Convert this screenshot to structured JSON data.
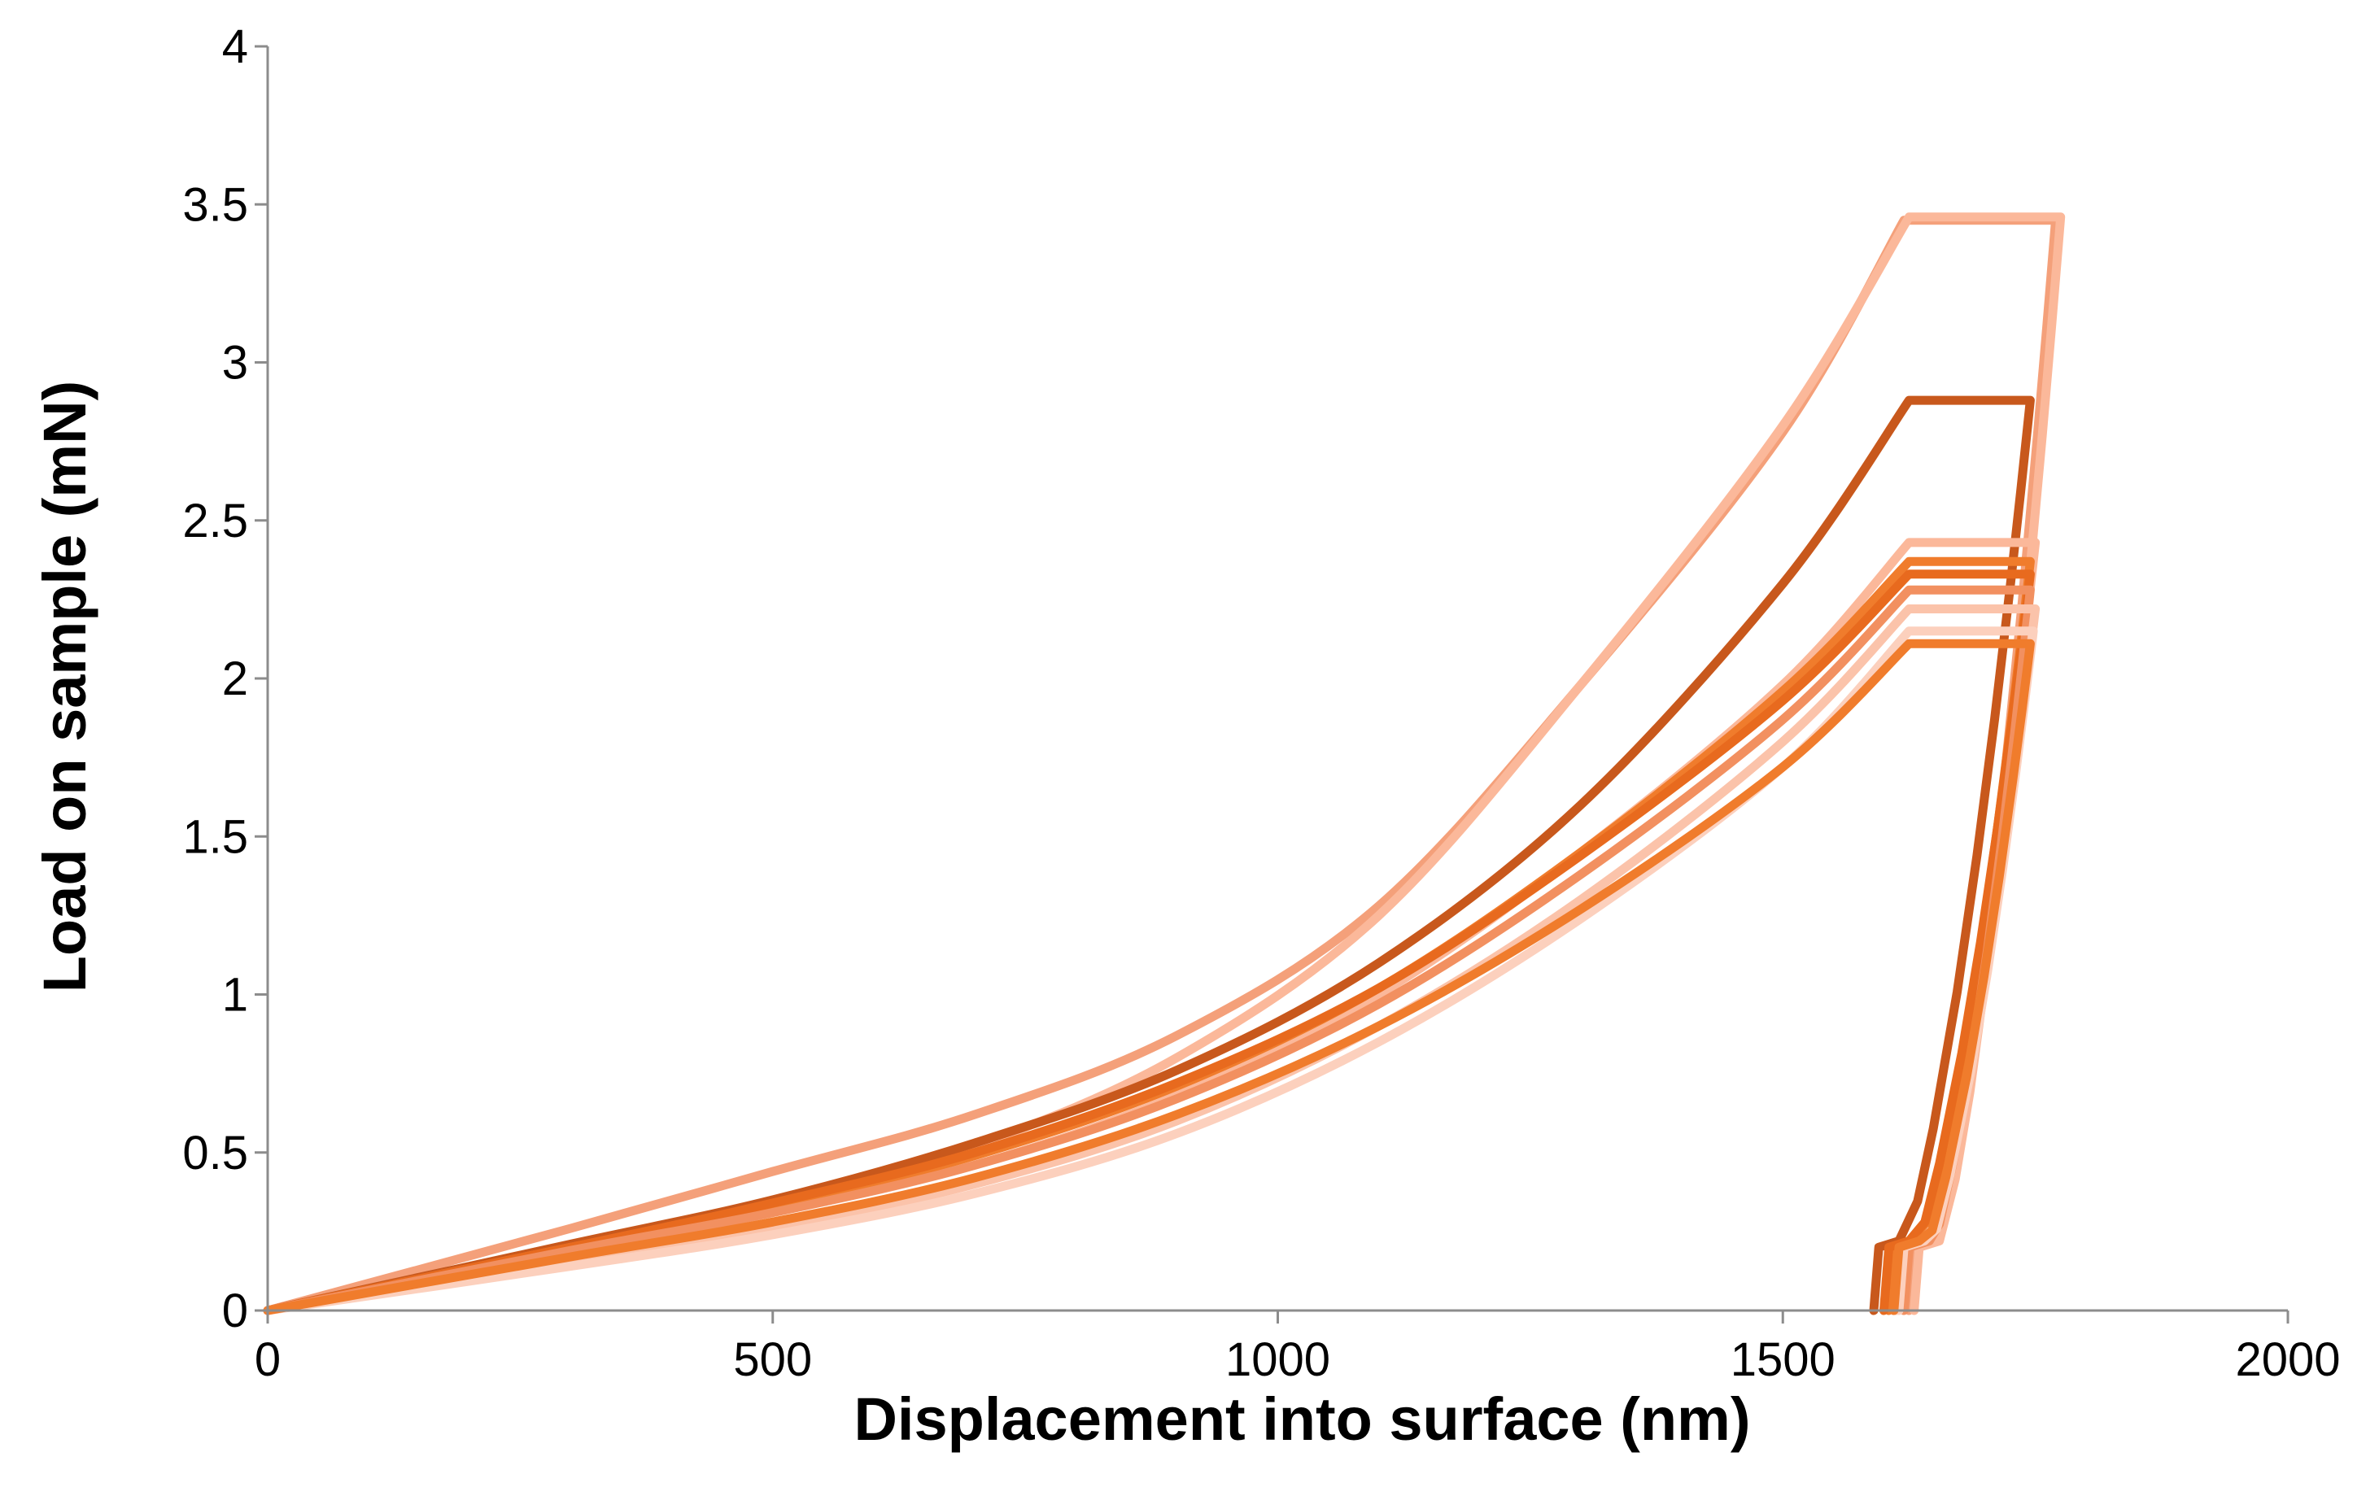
{
  "chart_data": {
    "type": "line",
    "title": "",
    "xlabel": "Displacement into surface (nm)",
    "ylabel": "Load on sample (mN)",
    "xlim": [
      0,
      2000
    ],
    "ylim": [
      0,
      4
    ],
    "xticks": [
      "0",
      "500",
      "1000",
      "1500",
      "2000"
    ],
    "yticks": [
      "0",
      "0.5",
      "1",
      "1.5",
      "2",
      "2.5",
      "3",
      "3.5",
      "4"
    ],
    "xtick_values": [
      0,
      500,
      1000,
      1500,
      2000
    ],
    "ytick_values": [
      0,
      0.5,
      1,
      1.5,
      2,
      2.5,
      3,
      3.5,
      4
    ],
    "grid": false,
    "legend": "none",
    "series": [
      {
        "color": "#f4a07a",
        "pmax": 3.45,
        "h_max": 1620,
        "h_end": 1770,
        "h_f": 1625,
        "loading": [
          [
            0,
            0
          ],
          [
            300,
            0.26
          ],
          [
            500,
            0.44
          ],
          [
            700,
            0.62
          ],
          [
            900,
            0.87
          ],
          [
            1100,
            1.28
          ],
          [
            1300,
            1.98
          ],
          [
            1500,
            2.78
          ],
          [
            1620,
            3.45
          ]
        ]
      },
      {
        "color": "#fbb89a",
        "pmax": 3.46,
        "h_max": 1625,
        "h_end": 1775,
        "h_f": 1630,
        "loading": [
          [
            0,
            0
          ],
          [
            300,
            0.2
          ],
          [
            500,
            0.33
          ],
          [
            700,
            0.52
          ],
          [
            900,
            0.8
          ],
          [
            1100,
            1.25
          ],
          [
            1300,
            1.98
          ],
          [
            1500,
            2.8
          ],
          [
            1625,
            3.46
          ]
        ]
      },
      {
        "color": "#c8581c",
        "pmax": 2.88,
        "h_max": 1625,
        "h_end": 1745,
        "h_f": 1590,
        "loading": [
          [
            0,
            0
          ],
          [
            300,
            0.21
          ],
          [
            500,
            0.35
          ],
          [
            700,
            0.53
          ],
          [
            900,
            0.76
          ],
          [
            1100,
            1.1
          ],
          [
            1300,
            1.6
          ],
          [
            1500,
            2.3
          ],
          [
            1625,
            2.88
          ]
        ]
      },
      {
        "color": "#fbb89a",
        "pmax": 2.43,
        "h_max": 1625,
        "h_end": 1750,
        "h_f": 1610,
        "loading": [
          [
            0,
            0
          ],
          [
            300,
            0.19
          ],
          [
            500,
            0.31
          ],
          [
            700,
            0.46
          ],
          [
            900,
            0.68
          ],
          [
            1100,
            1.0
          ],
          [
            1300,
            1.45
          ],
          [
            1500,
            1.98
          ],
          [
            1625,
            2.43
          ]
        ]
      },
      {
        "color": "#f07c2c",
        "pmax": 2.37,
        "h_max": 1625,
        "h_end": 1745,
        "h_f": 1605,
        "loading": [
          [
            0,
            0
          ],
          [
            300,
            0.2
          ],
          [
            500,
            0.33
          ],
          [
            700,
            0.49
          ],
          [
            900,
            0.71
          ],
          [
            1100,
            1.02
          ],
          [
            1300,
            1.45
          ],
          [
            1500,
            1.96
          ],
          [
            1625,
            2.37
          ]
        ]
      },
      {
        "color": "#e86a1e",
        "pmax": 2.33,
        "h_max": 1625,
        "h_end": 1745,
        "h_f": 1600,
        "loading": [
          [
            0,
            0
          ],
          [
            300,
            0.2
          ],
          [
            500,
            0.34
          ],
          [
            700,
            0.5
          ],
          [
            900,
            0.72
          ],
          [
            1100,
            1.02
          ],
          [
            1300,
            1.44
          ],
          [
            1500,
            1.93
          ],
          [
            1625,
            2.33
          ]
        ]
      },
      {
        "color": "#f29060",
        "pmax": 2.28,
        "h_max": 1625,
        "h_end": 1745,
        "h_f": 1620,
        "loading": [
          [
            0,
            0
          ],
          [
            300,
            0.19
          ],
          [
            500,
            0.31
          ],
          [
            700,
            0.46
          ],
          [
            900,
            0.67
          ],
          [
            1100,
            0.97
          ],
          [
            1300,
            1.38
          ],
          [
            1500,
            1.87
          ],
          [
            1625,
            2.28
          ]
        ]
      },
      {
        "color": "#fbc3aa",
        "pmax": 2.22,
        "h_max": 1625,
        "h_end": 1750,
        "h_f": 1612,
        "loading": [
          [
            0,
            0
          ],
          [
            300,
            0.15
          ],
          [
            500,
            0.26
          ],
          [
            700,
            0.4
          ],
          [
            900,
            0.6
          ],
          [
            1100,
            0.9
          ],
          [
            1300,
            1.3
          ],
          [
            1500,
            1.8
          ],
          [
            1625,
            2.22
          ]
        ]
      },
      {
        "color": "#fcd0bd",
        "pmax": 2.15,
        "h_max": 1625,
        "h_end": 1748,
        "h_f": 1615,
        "loading": [
          [
            0,
            0
          ],
          [
            300,
            0.14
          ],
          [
            500,
            0.24
          ],
          [
            700,
            0.37
          ],
          [
            900,
            0.56
          ],
          [
            1100,
            0.85
          ],
          [
            1300,
            1.24
          ],
          [
            1500,
            1.72
          ],
          [
            1625,
            2.15
          ]
        ]
      },
      {
        "color": "#f07c2c",
        "pmax": 2.11,
        "h_max": 1625,
        "h_end": 1745,
        "h_f": 1610,
        "loading": [
          [
            0,
            0
          ],
          [
            300,
            0.17
          ],
          [
            500,
            0.28
          ],
          [
            700,
            0.42
          ],
          [
            900,
            0.62
          ],
          [
            1100,
            0.9
          ],
          [
            1300,
            1.27
          ],
          [
            1500,
            1.72
          ],
          [
            1625,
            2.11
          ]
        ]
      }
    ]
  }
}
